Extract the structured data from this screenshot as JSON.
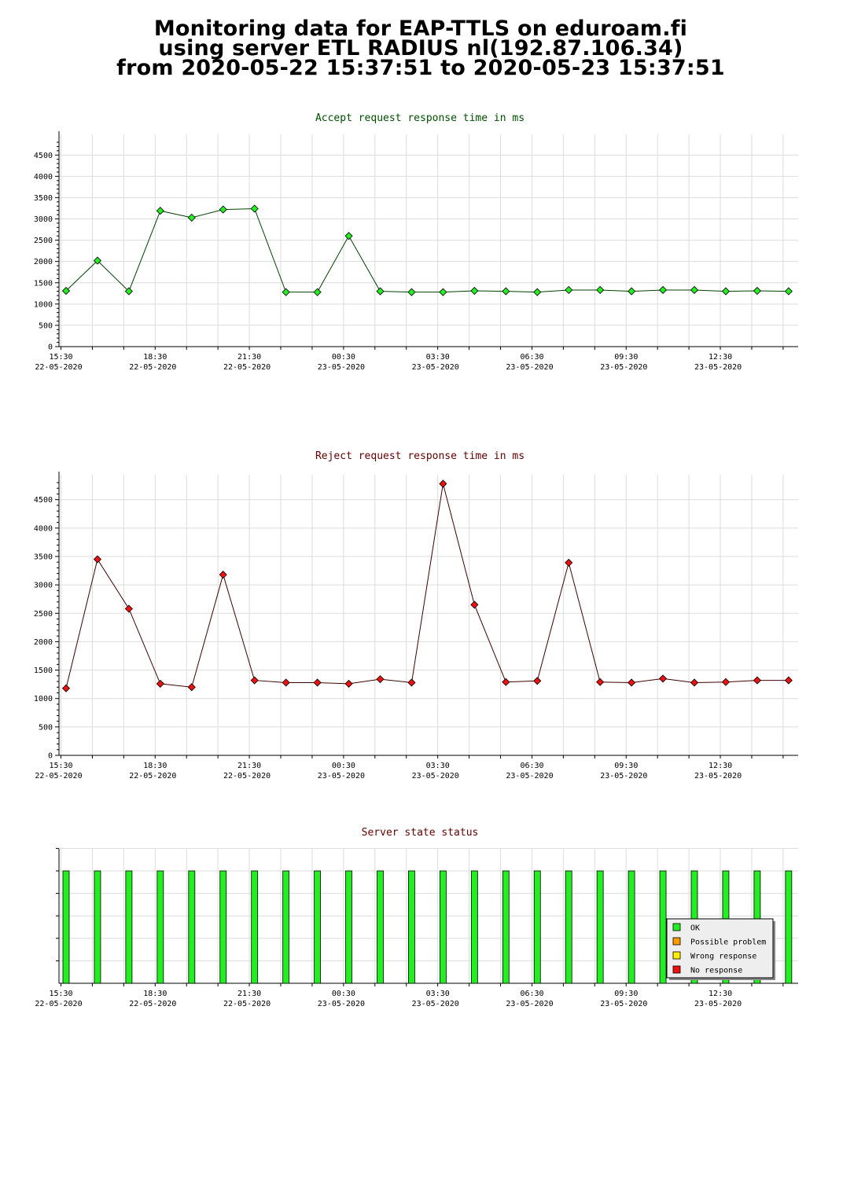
{
  "header": {
    "line1": "Monitoring data for EAP-TTLS on eduroam.fi",
    "line2": "using server ETL RADIUS nl(192.87.106.34)",
    "line3": "from 2020-05-22 15:37:51 to 2020-05-23 15:37:51"
  },
  "x_ticks": [
    {
      "time": "15:30",
      "date": "22-05-2020"
    },
    {
      "time": "18:30",
      "date": "22-05-2020"
    },
    {
      "time": "21:30",
      "date": "22-05-2020"
    },
    {
      "time": "00:30",
      "date": "23-05-2020"
    },
    {
      "time": "03:30",
      "date": "23-05-2020"
    },
    {
      "time": "06:30",
      "date": "23-05-2020"
    },
    {
      "time": "09:30",
      "date": "23-05-2020"
    },
    {
      "time": "12:30",
      "date": "23-05-2020"
    }
  ],
  "chart_data": [
    {
      "type": "line",
      "title": "Accept request response time in ms",
      "title_color": "#005000",
      "line_color": "#004000",
      "marker_color": "#22ee22",
      "ylim": [
        0,
        4800
      ],
      "yticks": [
        0,
        500,
        1000,
        1500,
        2000,
        2500,
        3000,
        3500,
        4000,
        4500
      ],
      "x": [
        "15:37",
        "16:37",
        "17:37",
        "18:37",
        "19:37",
        "20:37",
        "21:37",
        "22:37",
        "23:37",
        "00:37",
        "01:37",
        "02:37",
        "03:37",
        "04:37",
        "05:37",
        "06:37",
        "07:37",
        "08:37",
        "09:37",
        "10:37",
        "11:37",
        "12:37",
        "13:37",
        "14:37"
      ],
      "values": [
        1310,
        2020,
        1300,
        3190,
        3030,
        3220,
        3240,
        1280,
        1280,
        2600,
        1300,
        1280,
        1280,
        1310,
        1300,
        1280,
        1330,
        1330,
        1300,
        1330,
        1330,
        1300,
        1310,
        1300
      ],
      "grid": true
    },
    {
      "type": "line",
      "title": "Reject request response time in ms",
      "title_color": "#600000",
      "line_color": "#400000",
      "marker_color": "#ee1111",
      "ylim": [
        0,
        4800
      ],
      "yticks": [
        0,
        500,
        1000,
        1500,
        2000,
        2500,
        3000,
        3500,
        4000,
        4500
      ],
      "x": [
        "15:37",
        "16:37",
        "17:37",
        "18:37",
        "19:37",
        "20:37",
        "21:37",
        "22:37",
        "23:37",
        "00:37",
        "01:37",
        "02:37",
        "03:37",
        "04:37",
        "05:37",
        "06:37",
        "07:37",
        "08:37",
        "09:37",
        "10:37",
        "11:37",
        "12:37",
        "13:37",
        "14:37"
      ],
      "values": [
        1180,
        3450,
        2580,
        1260,
        1200,
        3180,
        1320,
        1280,
        1280,
        1260,
        1340,
        1280,
        4780,
        2650,
        1290,
        1310,
        3390,
        1290,
        1280,
        1350,
        1280,
        1290,
        1320,
        1320
      ],
      "grid": true
    },
    {
      "type": "bar",
      "title": "Server state status",
      "title_color": "#600000",
      "x": [
        "15:37",
        "16:37",
        "17:37",
        "18:37",
        "19:37",
        "20:37",
        "21:37",
        "22:37",
        "23:37",
        "00:37",
        "01:37",
        "02:37",
        "03:37",
        "04:37",
        "05:37",
        "06:37",
        "07:37",
        "08:37",
        "09:37",
        "10:37",
        "11:37",
        "12:37",
        "13:37",
        "14:37"
      ],
      "states": [
        "OK",
        "OK",
        "OK",
        "OK",
        "OK",
        "OK",
        "OK",
        "OK",
        "OK",
        "OK",
        "OK",
        "OK",
        "OK",
        "OK",
        "OK",
        "OK",
        "OK",
        "OK",
        "OK",
        "OK",
        "OK",
        "OK",
        "OK",
        "OK"
      ],
      "legend_position": "bottom-right",
      "legend": [
        {
          "label": "OK",
          "color": "#22ee22"
        },
        {
          "label": "Possible problem",
          "color": "#ff9900"
        },
        {
          "label": "Wrong response",
          "color": "#ffee00"
        },
        {
          "label": "No response",
          "color": "#ee1111"
        }
      ],
      "grid": true
    }
  ]
}
